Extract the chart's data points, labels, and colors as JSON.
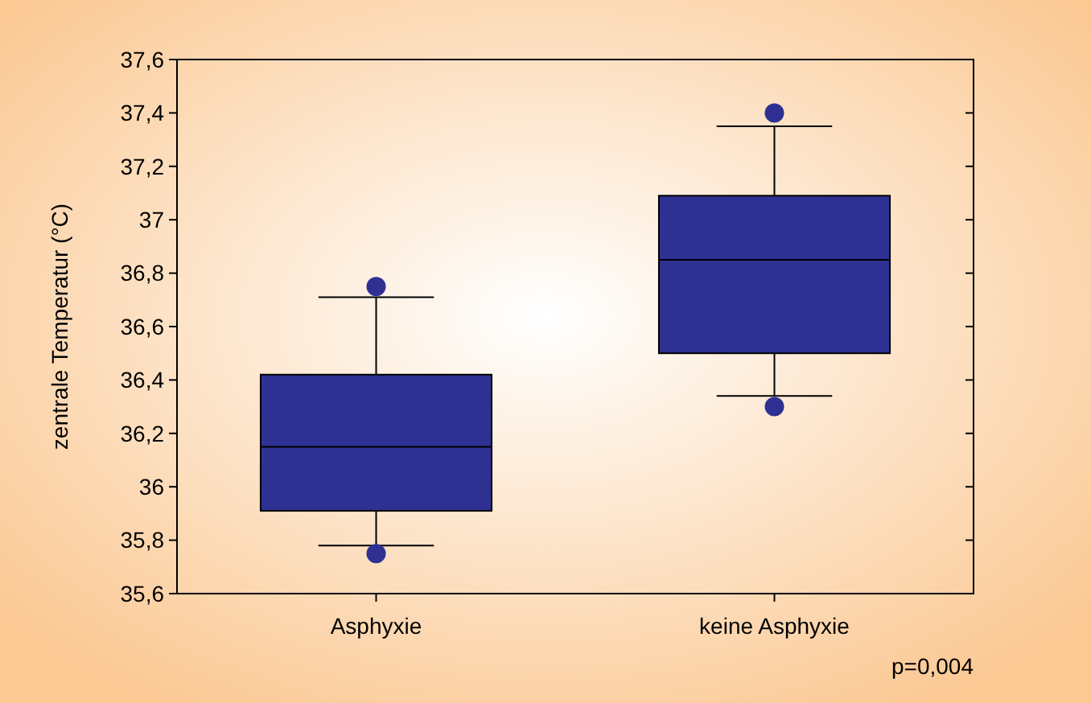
{
  "chart_data": {
    "type": "box",
    "ylabel": "zentrale Temperatur (°C)",
    "categories": [
      "Asphyxie",
      "keine Asphyxie"
    ],
    "series": [
      {
        "color": "#2e3192",
        "boxes": [
          {
            "low": 35.78,
            "q1": 35.91,
            "median": 36.15,
            "q3": 36.42,
            "high": 36.71,
            "outliers": [
              36.75,
              35.75
            ]
          },
          {
            "low": 36.34,
            "q1": 36.5,
            "median": 36.85,
            "q3": 37.09,
            "high": 37.35,
            "outliers": [
              37.4,
              36.3
            ]
          }
        ]
      }
    ],
    "ylim": [
      35.6,
      37.6
    ],
    "yticks": [
      {
        "value": 35.6,
        "label": "35,6"
      },
      {
        "value": 35.8,
        "label": "35,8"
      },
      {
        "value": 36,
        "label": "36"
      },
      {
        "value": 36.2,
        "label": "36,2"
      },
      {
        "value": 36.4,
        "label": "36,4"
      },
      {
        "value": 36.6,
        "label": "36,6"
      },
      {
        "value": 36.8,
        "label": "36,8"
      },
      {
        "value": 37,
        "label": "37"
      },
      {
        "value": 37.2,
        "label": "37,2"
      },
      {
        "value": 37.4,
        "label": "37,4"
      },
      {
        "value": 37.6,
        "label": "37,6"
      }
    ],
    "annotations": [
      "p=0,004"
    ]
  }
}
